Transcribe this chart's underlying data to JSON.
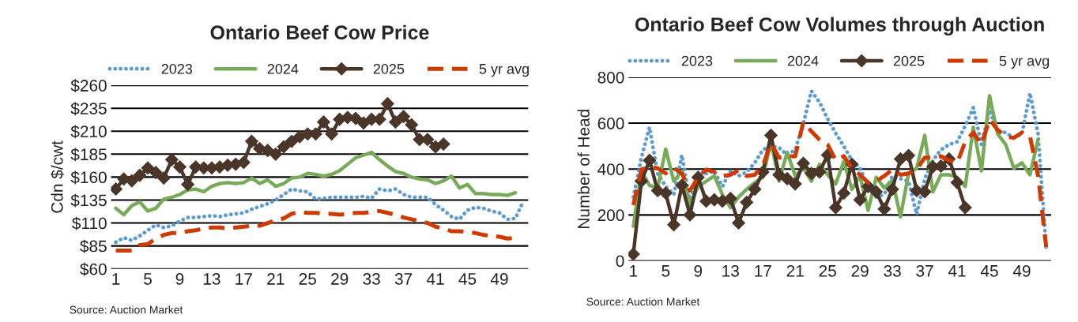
{
  "chart_data": [
    {
      "type": "line",
      "title": "Ontario Beef Cow Price",
      "ylabel": "Cdn $/cwt",
      "categories": [
        "1",
        null,
        null,
        null,
        "5",
        null,
        null,
        null,
        "9",
        null,
        null,
        null,
        "13",
        null,
        null,
        null,
        "17",
        null,
        null,
        null,
        "21",
        null,
        null,
        null,
        "25",
        null,
        null,
        null,
        "29",
        null,
        null,
        null,
        "33",
        null,
        null,
        null,
        "37",
        null,
        null,
        null,
        "41",
        null,
        null,
        null,
        "45",
        null,
        null,
        null,
        "49",
        null,
        null,
        null
      ],
      "series": [
        {
          "name": "2023",
          "color": "#5b9bd5",
          "line_style": "dotted",
          "marker": "none",
          "values": [
            89,
            94,
            91,
            96,
            102,
            108,
            105,
            107,
            112,
            116,
            116,
            117,
            118,
            117,
            119,
            120,
            121,
            125,
            128,
            131,
            135,
            141,
            147,
            145,
            144,
            136,
            137,
            138,
            138,
            138,
            138,
            139,
            137,
            147,
            145,
            147,
            141,
            138,
            138,
            138,
            130,
            124,
            117,
            114,
            124,
            127,
            126,
            123,
            121,
            114,
            115,
            134
          ]
        },
        {
          "name": "2024",
          "color": "#77ab59",
          "line_style": "solid",
          "marker": "none",
          "values": [
            126,
            119,
            129,
            133,
            123,
            126,
            136,
            138,
            141,
            146,
            147,
            144,
            150,
            153,
            154,
            153,
            154,
            159,
            153,
            157,
            150,
            153,
            159,
            160,
            164,
            163,
            161,
            163,
            167,
            174,
            181,
            184,
            187,
            179,
            172,
            166,
            164,
            160,
            158,
            157,
            153,
            156,
            161,
            148,
            152,
            142,
            142,
            141,
            141,
            140,
            143,
            null
          ]
        },
        {
          "name": "2025",
          "color": "#4a3628",
          "line_style": "solid",
          "marker": "diamond",
          "values": [
            147,
            158,
            156,
            162,
            170,
            165,
            159,
            179,
            171,
            152,
            171,
            170,
            170,
            171,
            173,
            174,
            176,
            199,
            191,
            189,
            185,
            193,
            199,
            204,
            207,
            207,
            220,
            207,
            223,
            225,
            224,
            219,
            223,
            223,
            240,
            220,
            226,
            217,
            201,
            201,
            193,
            196,
            null,
            null,
            null,
            null,
            null,
            null,
            null,
            null,
            null,
            null
          ]
        },
        {
          "name": "5 yr avg",
          "color": "#d03a00",
          "line_style": "dashed",
          "marker": "none",
          "values": [
            80,
            80,
            80,
            86,
            87,
            93,
            97,
            99,
            99,
            101,
            102,
            104,
            105,
            105,
            104,
            105,
            106,
            107,
            107,
            110,
            113,
            115,
            120,
            122,
            121,
            121,
            120,
            120,
            119,
            120,
            121,
            121,
            122,
            123,
            121,
            119,
            116,
            114,
            112,
            110,
            106,
            104,
            101,
            101,
            100,
            99,
            97,
            96,
            95,
            93,
            94,
            null
          ]
        }
      ],
      "ylim": [
        60,
        260
      ],
      "yticks": [
        {
          "value": 60,
          "label": "$60"
        },
        {
          "value": 85,
          "label": "$85"
        },
        {
          "value": 110,
          "label": "$110"
        },
        {
          "value": 135,
          "label": "$135"
        },
        {
          "value": 160,
          "label": "$160"
        },
        {
          "value": 185,
          "label": "$185"
        },
        {
          "value": 210,
          "label": "$210"
        },
        {
          "value": 235,
          "label": "$235"
        },
        {
          "value": 260,
          "label": "$260"
        }
      ],
      "grid": "y",
      "legend": "top",
      "annotations": [
        "Source: Auction Market"
      ]
    },
    {
      "type": "line",
      "title": "Ontario Beef Cow Volumes through Auction",
      "ylabel": "Number of Head",
      "categories": [
        "1",
        null,
        null,
        null,
        "5",
        null,
        null,
        null,
        "9",
        null,
        null,
        null,
        "13",
        null,
        null,
        null,
        "17",
        null,
        null,
        null,
        "21",
        null,
        null,
        null,
        "25",
        null,
        null,
        null,
        "29",
        null,
        null,
        null,
        "33",
        null,
        null,
        null,
        "37",
        null,
        null,
        null,
        "41",
        null,
        null,
        null,
        "45",
        null,
        null,
        null,
        "49",
        null,
        null,
        null
      ],
      "series": [
        {
          "name": "2023",
          "color": "#5b9bd5",
          "line_style": "dotted",
          "marker": "none",
          "values": [
            278,
            450,
            582,
            381,
            324,
            289,
            461,
            255,
            375,
            381,
            392,
            324,
            392,
            370,
            387,
            427,
            484,
            501,
            493,
            461,
            484,
            599,
            740,
            691,
            619,
            556,
            499,
            438,
            404,
            324,
            278,
            289,
            370,
            358,
            347,
            203,
            358,
            438,
            484,
            507,
            519,
            588,
            668,
            507,
            656,
            565,
            559,
            536,
            553,
            731,
            553,
            54
          ]
        },
        {
          "name": "2024",
          "color": "#77ab59",
          "line_style": "solid",
          "marker": "none",
          "values": [
            151,
            392,
            329,
            318,
            487,
            347,
            392,
            243,
            324,
            347,
            370,
            289,
            232,
            278,
            312,
            341,
            364,
            519,
            347,
            473,
            370,
            404,
            347,
            421,
            375,
            335,
            433,
            312,
            370,
            220,
            364,
            318,
            352,
            192,
            381,
            404,
            547,
            301,
            375,
            375,
            364,
            324,
            582,
            392,
            720,
            553,
            507,
            404,
            427,
            375,
            530,
            null
          ]
        },
        {
          "name": "2025",
          "color": "#4a3628",
          "line_style": "solid",
          "marker": "diamond",
          "values": [
            29,
            347,
            438,
            306,
            295,
            157,
            329,
            200,
            364,
            260,
            266,
            260,
            272,
            165,
            255,
            312,
            387,
            547,
            375,
            358,
            335,
            425,
            381,
            387,
            461,
            232,
            295,
            421,
            266,
            324,
            301,
            226,
            312,
            444,
            459,
            306,
            301,
            410,
            413,
            444,
            341,
            232,
            null,
            null,
            null,
            null,
            null,
            null,
            null,
            null,
            null,
            null
          ]
        },
        {
          "name": "5 yr avg",
          "color": "#d03a00",
          "line_style": "dashed",
          "marker": "none",
          "values": [
            243,
            398,
            410,
            404,
            381,
            404,
            381,
            306,
            364,
            398,
            387,
            370,
            375,
            395,
            370,
            375,
            415,
            513,
            450,
            456,
            456,
            605,
            564,
            528,
            507,
            438,
            456,
            404,
            375,
            341,
            347,
            370,
            398,
            375,
            381,
            398,
            450,
            450,
            456,
            438,
            427,
            519,
            559,
            507,
            616,
            571,
            542,
            536,
            559,
            542,
            370,
            60
          ]
        }
      ],
      "ylim": [
        0,
        800
      ],
      "yticks": [
        0,
        200,
        400,
        600,
        800
      ],
      "grid": "y",
      "legend": "top",
      "annotations": [
        "Source: Auction Market"
      ]
    }
  ]
}
